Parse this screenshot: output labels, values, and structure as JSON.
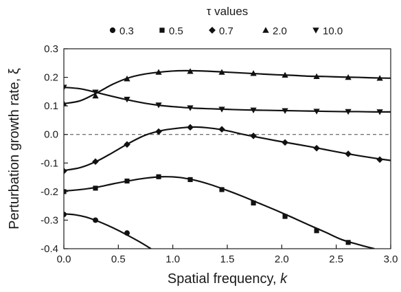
{
  "chart_data": {
    "type": "line",
    "title": "",
    "xlabel": "Spatial frequency, ",
    "xlabel_var": "k",
    "ylabel": "Perturbation growth rate, ξ",
    "xlim": [
      0.0,
      3.0
    ],
    "ylim": [
      -0.4,
      0.3
    ],
    "xticks": [
      "0.0",
      "0.5",
      "1.0",
      "1.5",
      "2.0",
      "2.5",
      "3.0"
    ],
    "yticks": [
      "0.3",
      "0.2",
      "0.1",
      "0.0",
      "-0.1",
      "-0.2",
      "-0.3",
      "-0.4"
    ],
    "xtick_values": [
      0,
      0.5,
      1.0,
      1.5,
      2.0,
      2.5,
      3.0
    ],
    "ytick_values": [
      0.3,
      0.2,
      0.1,
      0.0,
      -0.1,
      -0.2,
      -0.3,
      -0.4
    ],
    "zero_line": true,
    "legend": {
      "title": "τ values",
      "placement": "top"
    },
    "series": [
      {
        "name": "0.3",
        "marker": "circle",
        "points": [
          [
            0.0,
            -0.28
          ],
          [
            0.29,
            -0.3
          ],
          [
            0.58,
            -0.345
          ]
        ],
        "curve": [
          [
            0.0,
            -0.278
          ],
          [
            0.1,
            -0.281
          ],
          [
            0.2,
            -0.289
          ],
          [
            0.3,
            -0.302
          ],
          [
            0.4,
            -0.318
          ],
          [
            0.5,
            -0.336
          ],
          [
            0.6,
            -0.356
          ],
          [
            0.7,
            -0.377
          ],
          [
            0.8,
            -0.4
          ]
        ]
      },
      {
        "name": "0.5",
        "marker": "square",
        "points": [
          [
            0.0,
            -0.2
          ],
          [
            0.29,
            -0.188
          ],
          [
            0.58,
            -0.163
          ],
          [
            0.87,
            -0.148
          ],
          [
            1.16,
            -0.158
          ],
          [
            1.45,
            -0.193
          ],
          [
            1.74,
            -0.24
          ],
          [
            2.03,
            -0.287
          ],
          [
            2.32,
            -0.337
          ],
          [
            2.61,
            -0.378
          ]
        ],
        "curve": [
          [
            0.0,
            -0.198
          ],
          [
            0.15,
            -0.193
          ],
          [
            0.3,
            -0.185
          ],
          [
            0.45,
            -0.173
          ],
          [
            0.6,
            -0.162
          ],
          [
            0.75,
            -0.153
          ],
          [
            0.9,
            -0.148
          ],
          [
            1.05,
            -0.15
          ],
          [
            1.2,
            -0.16
          ],
          [
            1.35,
            -0.176
          ],
          [
            1.5,
            -0.196
          ],
          [
            1.65,
            -0.218
          ],
          [
            1.8,
            -0.242
          ],
          [
            1.95,
            -0.266
          ],
          [
            2.1,
            -0.291
          ],
          [
            2.25,
            -0.317
          ],
          [
            2.4,
            -0.342
          ],
          [
            2.55,
            -0.368
          ],
          [
            2.7,
            -0.385
          ],
          [
            2.85,
            -0.4
          ]
        ]
      },
      {
        "name": "0.7",
        "marker": "diamond",
        "points": [
          [
            0.0,
            -0.128
          ],
          [
            0.29,
            -0.095
          ],
          [
            0.58,
            -0.035
          ],
          [
            0.87,
            0.01
          ],
          [
            1.16,
            0.025
          ],
          [
            1.45,
            0.018
          ],
          [
            1.74,
            -0.005
          ],
          [
            2.03,
            -0.028
          ],
          [
            2.32,
            -0.048
          ],
          [
            2.61,
            -0.068
          ],
          [
            2.9,
            -0.088
          ]
        ],
        "curve": [
          [
            0.0,
            -0.126
          ],
          [
            0.15,
            -0.116
          ],
          [
            0.3,
            -0.094
          ],
          [
            0.45,
            -0.063
          ],
          [
            0.6,
            -0.03
          ],
          [
            0.75,
            -0.002
          ],
          [
            0.9,
            0.014
          ],
          [
            1.05,
            0.022
          ],
          [
            1.2,
            0.026
          ],
          [
            1.35,
            0.022
          ],
          [
            1.5,
            0.013
          ],
          [
            1.65,
            0.0
          ],
          [
            1.8,
            -0.011
          ],
          [
            1.95,
            -0.022
          ],
          [
            2.1,
            -0.032
          ],
          [
            2.25,
            -0.042
          ],
          [
            2.4,
            -0.053
          ],
          [
            2.55,
            -0.064
          ],
          [
            2.7,
            -0.074
          ],
          [
            2.85,
            -0.083
          ],
          [
            3.0,
            -0.091
          ]
        ]
      },
      {
        "name": "2.0",
        "marker": "triangle-up",
        "points": [
          [
            0.0,
            0.108
          ],
          [
            0.29,
            0.135
          ],
          [
            0.58,
            0.195
          ],
          [
            0.87,
            0.218
          ],
          [
            1.16,
            0.221
          ],
          [
            1.45,
            0.218
          ],
          [
            1.74,
            0.214
          ],
          [
            2.03,
            0.208
          ],
          [
            2.32,
            0.203
          ],
          [
            2.61,
            0.2
          ],
          [
            2.9,
            0.197
          ]
        ],
        "curve": [
          [
            0.0,
            0.108
          ],
          [
            0.15,
            0.118
          ],
          [
            0.3,
            0.145
          ],
          [
            0.45,
            0.176
          ],
          [
            0.6,
            0.199
          ],
          [
            0.75,
            0.212
          ],
          [
            0.9,
            0.219
          ],
          [
            1.05,
            0.223
          ],
          [
            1.2,
            0.223
          ],
          [
            1.35,
            0.221
          ],
          [
            1.5,
            0.218
          ],
          [
            1.65,
            0.215
          ],
          [
            1.8,
            0.212
          ],
          [
            1.95,
            0.209
          ],
          [
            2.1,
            0.207
          ],
          [
            2.25,
            0.204
          ],
          [
            2.4,
            0.203
          ],
          [
            2.55,
            0.201
          ],
          [
            2.7,
            0.2
          ],
          [
            2.85,
            0.198
          ],
          [
            3.0,
            0.197
          ]
        ]
      },
      {
        "name": "10.0",
        "marker": "triangle-down",
        "points": [
          [
            0.0,
            0.165
          ],
          [
            0.29,
            0.148
          ],
          [
            0.58,
            0.123
          ],
          [
            0.87,
            0.103
          ],
          [
            1.16,
            0.093
          ],
          [
            1.45,
            0.088
          ],
          [
            1.74,
            0.085
          ],
          [
            2.03,
            0.083
          ],
          [
            2.32,
            0.081
          ],
          [
            2.61,
            0.08
          ],
          [
            2.9,
            0.079
          ]
        ],
        "curve": [
          [
            0.0,
            0.165
          ],
          [
            0.15,
            0.16
          ],
          [
            0.3,
            0.147
          ],
          [
            0.45,
            0.133
          ],
          [
            0.6,
            0.12
          ],
          [
            0.75,
            0.109
          ],
          [
            0.9,
            0.101
          ],
          [
            1.05,
            0.096
          ],
          [
            1.2,
            0.092
          ],
          [
            1.35,
            0.09
          ],
          [
            1.5,
            0.088
          ],
          [
            1.65,
            0.086
          ],
          [
            1.8,
            0.085
          ],
          [
            1.95,
            0.084
          ],
          [
            2.1,
            0.083
          ],
          [
            2.25,
            0.082
          ],
          [
            2.4,
            0.081
          ],
          [
            2.55,
            0.08
          ],
          [
            2.7,
            0.08
          ],
          [
            2.85,
            0.079
          ],
          [
            3.0,
            0.079
          ]
        ]
      }
    ]
  }
}
